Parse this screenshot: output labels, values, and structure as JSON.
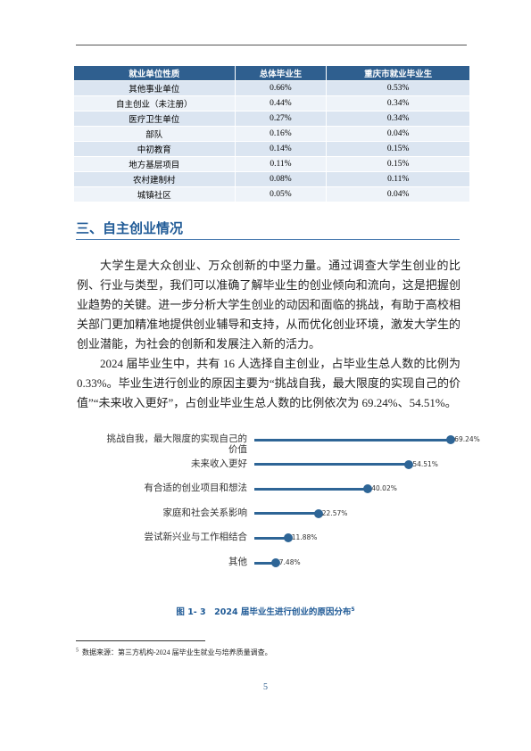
{
  "table": {
    "header": [
      "就业单位性质",
      "总体毕业生",
      "重庆市就业毕业生"
    ],
    "rows": [
      [
        "其他事业单位",
        "0.66%",
        "0.53%"
      ],
      [
        "自主创业（未注册）",
        "0.44%",
        "0.34%"
      ],
      [
        "医疗卫生单位",
        "0.27%",
        "0.34%"
      ],
      [
        "部队",
        "0.16%",
        "0.04%"
      ],
      [
        "中初教育",
        "0.14%",
        "0.15%"
      ],
      [
        "地方基层项目",
        "0.11%",
        "0.15%"
      ],
      [
        "农村建制村",
        "0.08%",
        "0.11%"
      ],
      [
        "城镇社区",
        "0.05%",
        "0.04%"
      ]
    ]
  },
  "section_title": "三、自主创业情况",
  "paragraphs": [
    "大学生是大众创业、万众创新的中坚力量。通过调查大学生创业的比例、行业与类型，我们可以准确了解毕业生的创业倾向和流向，这是把握创业趋势的关键。进一步分析大学生创业的动因和面临的挑战，有助于高校相关部门更加精准地提供创业辅导和支持，从而优化创业环境，激发大学生的创业潜能，为社会的创新和发展注入新的活力。",
    "2024 届毕业生中，共有 16 人选择自主创业，占毕业生总人数的比例为 0.33%。毕业生进行创业的原因主要为“挑战自我，最大限度的实现自己的价值”“未来收入更好”，占创业毕业生总人数的比例依次为 69.24%、54.51%。"
  ],
  "chart_data": {
    "type": "lollipop",
    "color": "#2e6596",
    "categories": [
      "挑战自我，最大限度的实现自己的价值",
      "未来收入更好",
      "有合适的创业项目和想法",
      "家庭和社会关系影响",
      "尝试新兴业与工作相结合",
      "其他"
    ],
    "values": [
      69.24,
      54.51,
      40.02,
      22.57,
      11.88,
      7.48
    ],
    "value_labels": [
      "69.24%",
      "54.51%",
      "40.02%",
      "22.57%",
      "11.88%",
      "7.48%"
    ]
  },
  "caption": {
    "text": "图 1- 3　2024 届毕业生进行创业的原因分布",
    "note_ref": "5"
  },
  "footnote": {
    "ref": "5",
    "text": "数据来源：第三方机构-2024 届毕业生就业与培养质量调查。"
  },
  "page_number": "5"
}
